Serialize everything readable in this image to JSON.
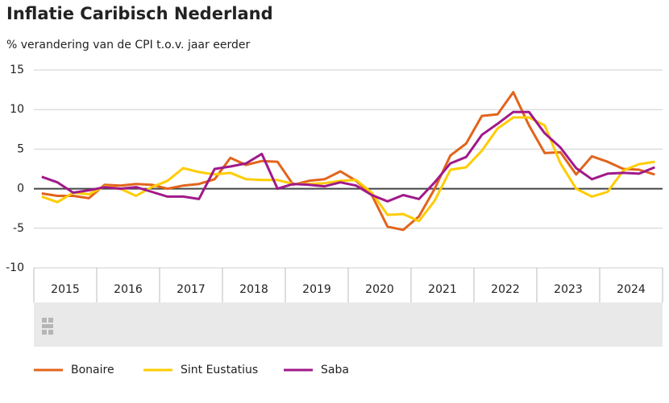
{
  "chart_data": {
    "type": "line",
    "title": "Inflatie Caribisch Nederland",
    "subtitle": "% verandering van de CPI t.o.v. jaar eerder",
    "year_labels": [
      "2015",
      "2016",
      "2017",
      "2018",
      "2019",
      "2020",
      "2021",
      "2022",
      "2023",
      "2024"
    ],
    "ylim": [
      -10,
      15
    ],
    "yticks": [
      -10,
      -5,
      0,
      5,
      10,
      15
    ],
    "grid": true,
    "series": [
      {
        "name": "Bonaire",
        "color": "#e2641c",
        "values": [
          -0.6,
          -0.9,
          -0.9,
          -1.2,
          0.5,
          0.4,
          0.6,
          0.5,
          0.0,
          0.4,
          0.6,
          1.2,
          3.9,
          3.0,
          3.5,
          3.4,
          0.5,
          1.0,
          1.2,
          2.2,
          1.0,
          -0.8,
          -4.8,
          -5.2,
          -3.5,
          0.0,
          4.2,
          5.7,
          9.2,
          9.4,
          12.2,
          8.0,
          4.5,
          4.6,
          1.8,
          4.1,
          3.4,
          2.5,
          2.4,
          1.8
        ]
      },
      {
        "name": "Sint Eustatius",
        "color": "#ffcc00",
        "values": [
          -1.0,
          -1.7,
          -0.5,
          -0.7,
          0.3,
          0.0,
          -0.9,
          0.2,
          1.0,
          2.6,
          2.1,
          1.8,
          2.0,
          1.2,
          1.1,
          1.1,
          0.6,
          0.6,
          0.7,
          1.0,
          1.1,
          -0.5,
          -3.3,
          -3.2,
          -4.1,
          -1.5,
          2.4,
          2.7,
          4.8,
          7.6,
          9.0,
          9.0,
          8.0,
          3.2,
          0.0,
          -1.0,
          -0.4,
          2.3,
          3.1,
          3.4
        ]
      },
      {
        "name": "Saba",
        "color": "#a0198a",
        "values": [
          1.5,
          0.8,
          -0.5,
          -0.2,
          0.2,
          0.0,
          0.2,
          -0.4,
          -1.0,
          -1.0,
          -1.3,
          2.5,
          2.8,
          3.2,
          4.4,
          0.0,
          0.6,
          0.5,
          0.3,
          0.8,
          0.4,
          -0.8,
          -1.6,
          -0.8,
          -1.3,
          0.8,
          3.2,
          4.0,
          6.8,
          8.2,
          9.7,
          9.7,
          7.0,
          5.2,
          2.6,
          1.2,
          1.9,
          2.0,
          1.9,
          2.7
        ]
      }
    ]
  }
}
